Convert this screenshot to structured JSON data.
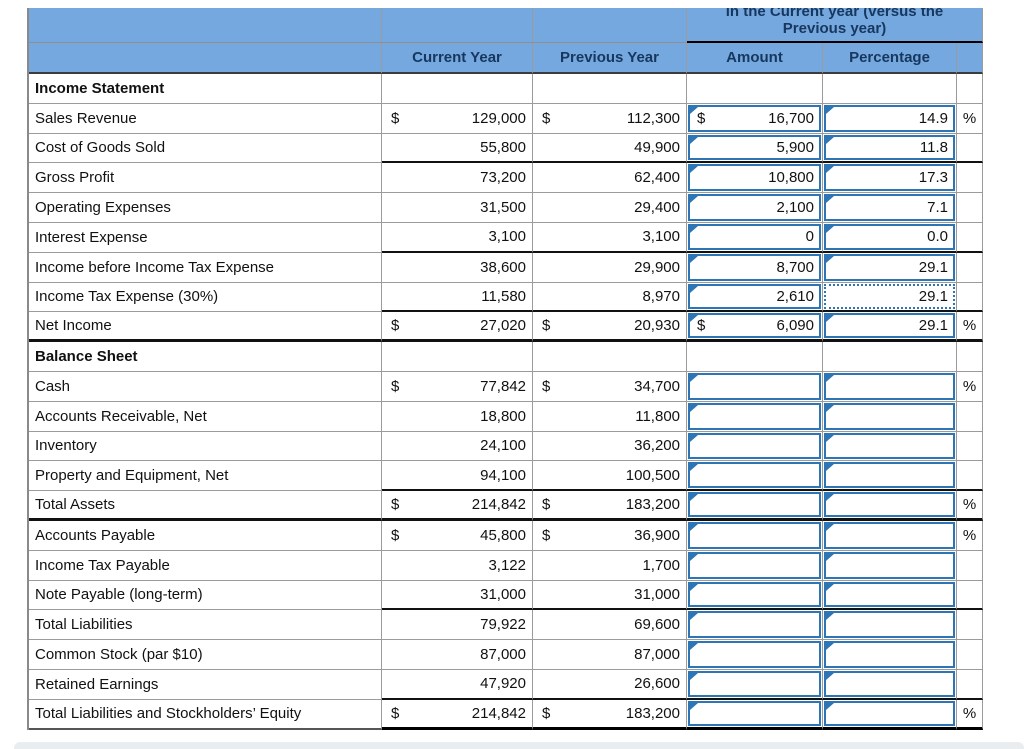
{
  "header": {
    "increase_line1": "in the Current year (versus the",
    "increase_line2": "Previous year)",
    "columns": [
      "Current Year",
      "Previous Year",
      "Amount",
      "Percentage"
    ]
  },
  "colors": {
    "header_bg": "#75A8DF",
    "input_border": "#2E75B6",
    "grid_line": "#9B9B9B",
    "rule_line": "#111111"
  },
  "table": {
    "rows": [
      {
        "label": "Income Statement",
        "section": true,
        "rule": "",
        "boxes": false,
        "cur": "",
        "prev": "",
        "amt": "",
        "pct": "",
        "sign": ""
      },
      {
        "label": "Sales Revenue",
        "cur": "129,000",
        "curD": "$",
        "prev": "112,300",
        "prevD": "$",
        "amt": "16,700",
        "amtD": "$",
        "pct": "14.9",
        "sign": "%",
        "boxes": true,
        "rule": ""
      },
      {
        "label": "Cost of Goods Sold",
        "cur": "55,800",
        "prev": "49,900",
        "amt": "5,900",
        "pct": "11.8",
        "sign": "",
        "boxes": true,
        "rule": "num"
      },
      {
        "label": "Gross Profit",
        "cur": "73,200",
        "prev": "62,400",
        "amt": "10,800",
        "pct": "17.3",
        "sign": "",
        "boxes": true,
        "rule": ""
      },
      {
        "label": "Operating Expenses",
        "cur": "31,500",
        "prev": "29,400",
        "amt": "2,100",
        "pct": "7.1",
        "sign": "",
        "boxes": true,
        "rule": ""
      },
      {
        "label": "Interest Expense",
        "cur": "3,100",
        "prev": "3,100",
        "amt": "0",
        "pct": "0.0",
        "sign": "",
        "boxes": true,
        "rule": "num"
      },
      {
        "label": "Income before Income Tax Expense",
        "cur": "38,600",
        "prev": "29,900",
        "amt": "8,700",
        "pct": "29.1",
        "sign": "",
        "boxes": true,
        "rule": ""
      },
      {
        "label": "Income Tax Expense (30%)",
        "cur": "11,580",
        "prev": "8,970",
        "amt": "2,610",
        "pct": "29.1",
        "pctDotted": true,
        "sign": "",
        "boxes": true,
        "rule": "num"
      },
      {
        "label": "Net Income",
        "cur": "27,020",
        "curD": "$",
        "prev": "20,930",
        "prevD": "$",
        "amt": "6,090",
        "amtD": "$",
        "pct": "29.1",
        "sign": "%",
        "boxes": true,
        "rule": "row"
      },
      {
        "label": "Balance Sheet",
        "section": true,
        "rule": "",
        "boxes": false,
        "cur": "",
        "prev": "",
        "amt": "",
        "pct": "",
        "sign": ""
      },
      {
        "label": "Cash",
        "cur": "77,842",
        "curD": "$",
        "prev": "34,700",
        "prevD": "$",
        "amt": "",
        "pct": "",
        "sign": "%",
        "boxes": true,
        "rule": ""
      },
      {
        "label": "Accounts Receivable, Net",
        "cur": "18,800",
        "prev": "11,800",
        "amt": "",
        "pct": "",
        "sign": "",
        "boxes": true,
        "rule": ""
      },
      {
        "label": "Inventory",
        "cur": "24,100",
        "prev": "36,200",
        "amt": "",
        "pct": "",
        "sign": "",
        "boxes": true,
        "rule": ""
      },
      {
        "label": "Property and Equipment, Net",
        "cur": "94,100",
        "prev": "100,500",
        "amt": "",
        "pct": "",
        "sign": "",
        "boxes": true,
        "rule": "num"
      },
      {
        "label": "Total Assets",
        "cur": "214,842",
        "curD": "$",
        "prev": "183,200",
        "prevD": "$",
        "amt": "",
        "pct": "",
        "sign": "%",
        "boxes": true,
        "rule": "row"
      },
      {
        "label": "Accounts Payable",
        "cur": "45,800",
        "curD": "$",
        "prev": "36,900",
        "prevD": "$",
        "amt": "",
        "pct": "",
        "sign": "%",
        "boxes": true,
        "rule": ""
      },
      {
        "label": "Income Tax Payable",
        "cur": "3,122",
        "prev": "1,700",
        "amt": "",
        "pct": "",
        "sign": "",
        "boxes": true,
        "rule": ""
      },
      {
        "label": "Note Payable (long-term)",
        "cur": "31,000",
        "prev": "31,000",
        "amt": "",
        "pct": "",
        "sign": "",
        "boxes": true,
        "rule": "num"
      },
      {
        "label": "Total Liabilities",
        "cur": "79,922",
        "prev": "69,600",
        "amt": "",
        "pct": "",
        "sign": "",
        "boxes": true,
        "rule": ""
      },
      {
        "label": "Common Stock (par $10)",
        "cur": "87,000",
        "prev": "87,000",
        "amt": "",
        "pct": "",
        "sign": "",
        "boxes": true,
        "rule": ""
      },
      {
        "label": "Retained Earnings",
        "cur": "47,920",
        "prev": "26,600",
        "amt": "",
        "pct": "",
        "sign": "",
        "boxes": true,
        "rule": "num"
      },
      {
        "label": "Total Liabilities and Stockholders’ Equity",
        "cur": "214,842",
        "curD": "$",
        "prev": "183,200",
        "prevD": "$",
        "amt": "",
        "pct": "",
        "sign": "%",
        "boxes": true,
        "rule": "end"
      }
    ]
  }
}
